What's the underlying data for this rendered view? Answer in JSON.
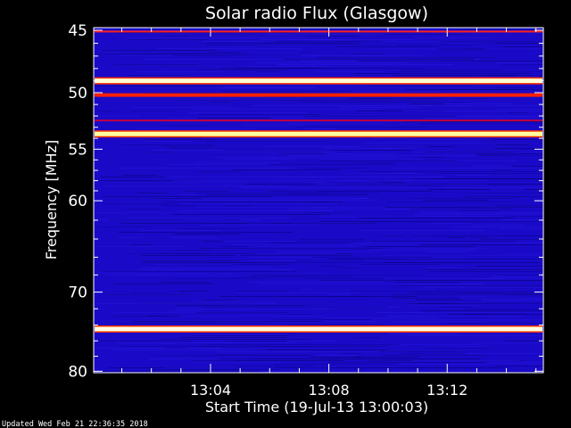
{
  "chart_data": {
    "type": "heatmap",
    "title": "Solar radio Flux (Glasgow)",
    "xlabel": "Start Time (19-Jul-13 13:00:03)",
    "ylabel": "Frequency [MHz]",
    "x_unit": "minutes after 13:00:03",
    "xlim": [
      0,
      15.2
    ],
    "ylim": [
      80.2,
      44.8
    ],
    "y_scale": "log",
    "x_ticks": [
      {
        "value": 3.95,
        "label": "13:04"
      },
      {
        "value": 7.95,
        "label": "13:08"
      },
      {
        "value": 11.95,
        "label": "13:12"
      }
    ],
    "y_ticks": [
      {
        "value": 45,
        "label": "45"
      },
      {
        "value": 50,
        "label": "50"
      },
      {
        "value": 55,
        "label": "55"
      },
      {
        "value": 60,
        "label": "60"
      },
      {
        "value": 70,
        "label": "70"
      },
      {
        "value": 80,
        "label": "80"
      }
    ],
    "minor_y_ticks": [
      46,
      47,
      48,
      49,
      51,
      52,
      53,
      54,
      56,
      57,
      58,
      59,
      62,
      64,
      66,
      68,
      72,
      74,
      76,
      78
    ],
    "minor_x_ticks": [
      0.95,
      1.95,
      2.95,
      4.95,
      5.95,
      6.95,
      8.95,
      9.95,
      10.95,
      12.95,
      13.95,
      14.95
    ],
    "background_level": "low (blue)",
    "bands": [
      {
        "freq_mhz": 45.1,
        "level": "moderate",
        "color": "#ff2020"
      },
      {
        "freq_mhz": 49.0,
        "level": "saturated",
        "color": "#ffffd0"
      },
      {
        "freq_mhz": 50.2,
        "level": "high",
        "color": "#ff2000"
      },
      {
        "freq_mhz": 52.4,
        "level": "moderate",
        "color": "#c00040"
      },
      {
        "freq_mhz": 53.6,
        "level": "saturated",
        "color": "#ffffa0"
      },
      {
        "freq_mhz": 74.5,
        "level": "saturated",
        "color": "#ffffe0"
      }
    ],
    "colors": {
      "background": "#000000",
      "plot_bg": "#1a0ac8",
      "text": "#ffffff"
    }
  },
  "footer": "Updated Wed Feb 21 22:36:35 2018"
}
